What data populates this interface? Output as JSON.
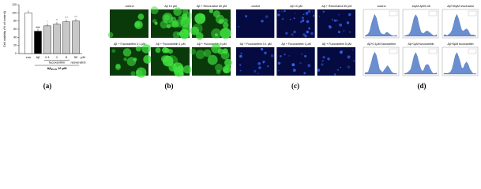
{
  "panels": [
    {
      "label": "(a)",
      "chart": {
        "type": "bar",
        "y_label": "Cell viability (% of control)",
        "categories": [
          "con",
          "Aβ",
          "0.1",
          "1",
          "5",
          "50"
        ],
        "values": [
          100,
          55,
          68,
          72,
          78,
          80
        ],
        "colors": [
          "#ffffff",
          "#000000",
          "#c8c8c8",
          "#c8c8c8",
          "#c8c8c8",
          "#c8c8c8"
        ],
        "significance": [
          null,
          "###",
          "*",
          "**",
          "***",
          "***"
        ],
        "unit": "μM",
        "groups": [
          "fucoxanthin",
          "resveratrol"
        ],
        "treatment": {
          "text": "Aβ",
          "sub": "25-35",
          "rest": " 10 μM"
        },
        "ylim": [
          0,
          120
        ],
        "yticks": [
          0,
          20,
          40,
          60,
          80,
          100,
          120
        ]
      }
    },
    {
      "label": "(b)",
      "captions": [
        "control",
        "Aβ 10 μM",
        "Aβ + Resveratrol 50 μM",
        "Aβ + Fucoxanthin 0.1 μM",
        "Aβ + Fucoxanthin 1 μM",
        "Aβ + Fucoxanthin 5 μM"
      ]
    },
    {
      "label": "(c)",
      "captions": [
        "control",
        "Aβ 10 μM",
        "Aβ + Resveratrol 50 μM",
        "Aβ + Fucoxanthin 0.1 μM",
        "Aβ + Fucoxanthin 1 μM",
        "Aβ + Fucoxanthin 5 μM"
      ]
    },
    {
      "label": "(d)",
      "captions": [
        "control",
        "10μM Aβ25-35",
        "Aβ+50μM resveratrol",
        "Aβ+0.1μM fucoxanthin",
        "Aβ+1μM fucoxanthin",
        "Aβ+5μM fucoxanthin"
      ]
    }
  ]
}
